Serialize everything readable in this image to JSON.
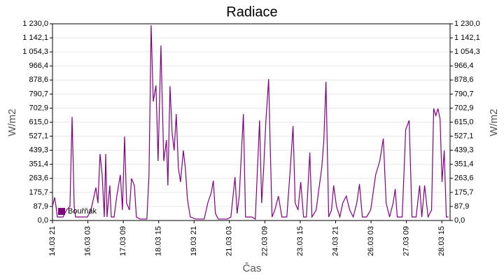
{
  "chart_data": {
    "type": "line",
    "title": "Radiace",
    "xlabel": "Čas",
    "ylabel": "W/m2",
    "y2label": "W/m2",
    "grid": true,
    "legend": "lower left",
    "xlim": [
      0,
      337
    ],
    "xticks": [
      {
        "value": 0,
        "label": "14.03 21"
      },
      {
        "value": 30,
        "label": "16.03 03"
      },
      {
        "value": 60,
        "label": "17.03 09"
      },
      {
        "value": 90,
        "label": "18.03 15"
      },
      {
        "value": 120,
        "label": "19.03 21"
      },
      {
        "value": 150,
        "label": "21.03 03"
      },
      {
        "value": 180,
        "label": "22.03 09"
      },
      {
        "value": 210,
        "label": "23.03 15"
      },
      {
        "value": 240,
        "label": "24.03 21"
      },
      {
        "value": 270,
        "label": "26.03 03"
      },
      {
        "value": 300,
        "label": "27.03 09"
      },
      {
        "value": 330,
        "label": "28.03 15"
      }
    ],
    "ylim": [
      0,
      1230
    ],
    "yticks": [
      {
        "value": 0,
        "label": "0,0"
      },
      {
        "value": 87.9,
        "label": "87,9"
      },
      {
        "value": 175.7,
        "label": "175,7"
      },
      {
        "value": 263.6,
        "label": "263,6"
      },
      {
        "value": 351.4,
        "label": "351,4"
      },
      {
        "value": 439.3,
        "label": "439,3"
      },
      {
        "value": 527.1,
        "label": "527,1"
      },
      {
        "value": 615.0,
        "label": "615,0"
      },
      {
        "value": 702.9,
        "label": "702,9"
      },
      {
        "value": 790.7,
        "label": "790,7"
      },
      {
        "value": 878.6,
        "label": "878,6"
      },
      {
        "value": 966.4,
        "label": "966,4"
      },
      {
        "value": 1054.3,
        "label": "1 054,3"
      },
      {
        "value": 1142.1,
        "label": "1 142,1"
      },
      {
        "value": 1230.0,
        "label": "1 230,0"
      }
    ],
    "x": [
      0,
      1.8,
      3.0,
      4.1,
      8.9,
      11.9,
      14.8,
      16.6,
      18.4,
      19.6,
      26.7,
      29.6,
      32.6,
      36.8,
      38.5,
      40.3,
      42.1,
      43.9,
      45.1,
      46.2,
      48.6,
      49.8,
      52.2,
      54.5,
      57.5,
      59.3,
      61.1,
      62.8,
      65.2,
      67.0,
      69.4,
      71.1,
      74.1,
      80.0,
      81.8,
      83.6,
      85.4,
      87.7,
      89.5,
      91.9,
      94.3,
      96.6,
      97.8,
      99.6,
      101.4,
      103.1,
      104.9,
      106.7,
      108.5,
      110.9,
      112.6,
      114.4,
      116.8,
      121.5,
      128.6,
      131.6,
      134.6,
      136.3,
      138.1,
      140.5,
      148.2,
      151.2,
      154.7,
      156.5,
      158.3,
      161.8,
      163.6,
      169.0,
      171.9,
      175.5,
      177.3,
      179.0,
      180.8,
      183.2,
      184.4,
      186.1,
      188.5,
      191.5,
      194.4,
      198.6,
      201.6,
      203.9,
      205.7,
      208.1,
      210.4,
      212.8,
      215.2,
      218.1,
      219.9,
      223.5,
      225.8,
      228.2,
      230.0,
      231.8,
      234.1,
      236.5,
      238.3,
      240.7,
      243.6,
      246.0,
      249.0,
      251.9,
      254.9,
      257.9,
      260.2,
      262.6,
      266.2,
      269.7,
      273.9,
      277.4,
      280.4,
      282.8,
      285.7,
      288.7,
      290.5,
      292.2,
      296.4,
      299.4,
      302.3,
      304.7,
      308.2,
      311.2,
      313.0,
      315.4,
      318.3,
      321.3,
      323.1,
      324.9,
      326.7,
      328.5,
      330.2,
      332.0,
      333.8,
      335.6
    ],
    "series": [
      {
        "name": "Bouřňák",
        "color": "#800080",
        "values": [
          88,
          144,
          88,
          22,
          22,
          66,
          88,
          648,
          88,
          22,
          22,
          22,
          66,
          206,
          109,
          416,
          285,
          22,
          416,
          22,
          219,
          22,
          22,
          153,
          285,
          66,
          525,
          109,
          66,
          263,
          219,
          22,
          9,
          9,
          285,
          1221,
          744,
          845,
          372,
          1094,
          372,
          503,
          219,
          840,
          547,
          438,
          665,
          328,
          241,
          438,
          328,
          131,
          22,
          9,
          9,
          109,
          175,
          249,
          44,
          9,
          9,
          22,
          271,
          44,
          153,
          665,
          22,
          22,
          9,
          626,
          109,
          328,
          613,
          884,
          503,
          22,
          66,
          153,
          22,
          22,
          328,
          591,
          109,
          66,
          241,
          22,
          22,
          425,
          22,
          66,
          197,
          328,
          503,
          867,
          22,
          66,
          219,
          88,
          22,
          109,
          153,
          66,
          22,
          109,
          228,
          22,
          22,
          66,
          285,
          372,
          512,
          109,
          22,
          109,
          197,
          22,
          22,
          569,
          626,
          22,
          22,
          219,
          22,
          219,
          22,
          66,
          700,
          656,
          700,
          635,
          241,
          438,
          22,
          22
        ]
      }
    ]
  }
}
